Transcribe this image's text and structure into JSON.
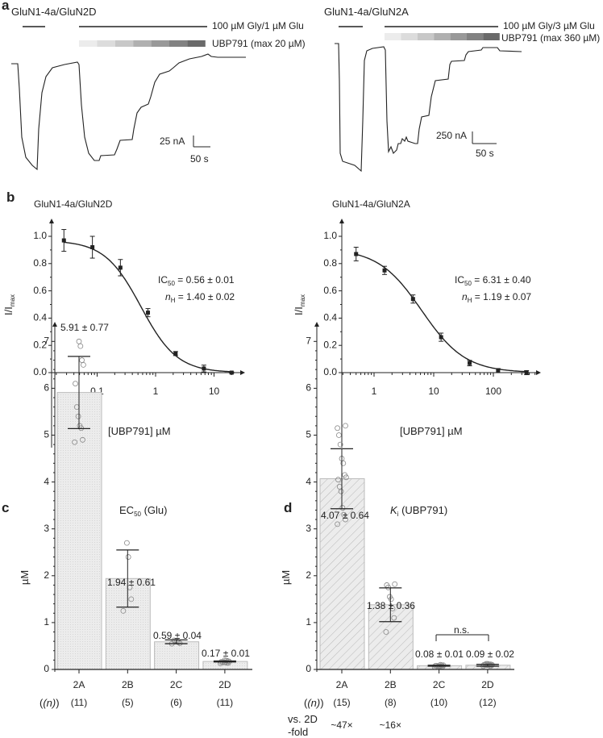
{
  "panel_labels": {
    "a": "a",
    "b": "b",
    "c": "c",
    "d": "d"
  },
  "panel_a": {
    "left": {
      "title": "GluN1-4a/GluN2D",
      "agonist_label": "100 µM Gly/1 µM Glu",
      "antagonist_label": "UBP791 (max 20 µM)",
      "scale_current": "25 nA",
      "scale_time": "50 s"
    },
    "right": {
      "title": "GluN1-4a/GluN2A",
      "agonist_label": "100 µM Gly/3 µM Glu",
      "antagonist_label": "UBP791 (max 360 µM)",
      "scale_current": "250 nA",
      "scale_time": "50 s"
    },
    "gradient_colors": [
      "#ececec",
      "#dcdcdc",
      "#c8c8c8",
      "#b0b0b0",
      "#999999",
      "#828282",
      "#6a6a6a"
    ]
  },
  "chart_data": [
    {
      "type": "scatter",
      "panel": "b-left",
      "title": "GluN1-4a/GluN2D",
      "xlabel": "[UBP791] µM",
      "ylabel": "I/I",
      "ylabel_sub": "max",
      "xscale": "log",
      "xlim": [
        0.02,
        30
      ],
      "ylim": [
        0,
        1.05
      ],
      "xticks": [
        "0.1",
        "1",
        "10"
      ],
      "xtick_values": [
        0.1,
        1,
        10
      ],
      "yticks": [
        "0.0",
        "0.2",
        "0.4",
        "0.6",
        "0.8",
        "1.0"
      ],
      "x": [
        0.027,
        0.083,
        0.25,
        0.74,
        2.2,
        6.7,
        20
      ],
      "y": [
        0.97,
        0.92,
        0.77,
        0.44,
        0.14,
        0.03,
        0.0
      ],
      "err": [
        0.08,
        0.08,
        0.06,
        0.03,
        0.015,
        0.025,
        0.005
      ],
      "fit": {
        "ic50": 0.56,
        "nH": 1.4,
        "top": 0.97
      },
      "annotation": {
        "ic_label": "IC",
        "ic_sub": "50",
        "ic_value": " = 0.56 ± 0.01",
        "nh_label": "n",
        "nh_sub": "H",
        "nh_value": " = 1.40 ± 0.02"
      }
    },
    {
      "type": "scatter",
      "panel": "b-right",
      "title": "GluN1-4a/GluN2A",
      "xlabel": "[UBP791] µM",
      "ylabel": "I/I",
      "ylabel_sub": "max",
      "xscale": "log",
      "xlim": [
        0.3,
        600
      ],
      "ylim": [
        0,
        1.05
      ],
      "xticks": [
        "1",
        "10",
        "100"
      ],
      "xtick_values": [
        1,
        10,
        100
      ],
      "yticks": [
        "0.0",
        "0.2",
        "0.4",
        "0.6",
        "0.8",
        "1.0"
      ],
      "x": [
        0.5,
        1.5,
        4.5,
        13.3,
        40,
        120,
        360
      ],
      "y": [
        0.87,
        0.75,
        0.54,
        0.26,
        0.07,
        0.015,
        0.0
      ],
      "err": [
        0.05,
        0.03,
        0.03,
        0.03,
        0.02,
        0.015,
        0.015
      ],
      "fit": {
        "ic50": 6.31,
        "nH": 1.19,
        "top": 0.91
      },
      "annotation": {
        "ic_label": "IC",
        "ic_sub": "50",
        "ic_value": " = 6.31 ± 0.40",
        "nh_label": "n",
        "nh_sub": "H",
        "nh_value": " = 1.19 ± 0.07"
      }
    },
    {
      "type": "bar",
      "panel": "c",
      "title": "EC",
      "title_sub": "50",
      "title_rest": " (Glu)",
      "ylabel": "µM",
      "ylim": [
        0,
        7
      ],
      "yticks": [
        "0",
        "1",
        "2",
        "3",
        "4",
        "5",
        "6",
        "7"
      ],
      "categories": [
        "2A",
        "2B",
        "2C",
        "2D"
      ],
      "n_label": "(n)",
      "n": [
        "(11)",
        "(5)",
        "(6)",
        "(11)"
      ],
      "values": [
        5.91,
        1.94,
        0.59,
        0.17
      ],
      "sd": [
        0.77,
        0.61,
        0.04,
        0.01
      ],
      "value_labels": [
        "5.91 ± 0.77",
        "1.94 ± 0.61",
        "0.59 ± 0.04",
        "0.17 ± 0.01"
      ],
      "points": [
        [
          4.85,
          4.9,
          5.15,
          5.2,
          5.4,
          5.6,
          6.1,
          6.5,
          6.6,
          6.9,
          7.0
        ],
        [
          1.25,
          1.5,
          1.75,
          2.4,
          2.7
        ],
        [
          0.55,
          0.56,
          0.58,
          0.6,
          0.61,
          0.62
        ],
        [
          0.13,
          0.14,
          0.14,
          0.15,
          0.15,
          0.16,
          0.16,
          0.17,
          0.18,
          0.19,
          0.2
        ]
      ],
      "bar_fill": "#ececec",
      "pattern": "dots"
    },
    {
      "type": "bar",
      "panel": "d",
      "title": "K",
      "title_sub": "i",
      "title_rest": " (UBP791)",
      "ylabel": "µM",
      "ylim": [
        0,
        7
      ],
      "yticks": [
        "0",
        "1",
        "2",
        "3",
        "4",
        "5",
        "6",
        "7"
      ],
      "categories": [
        "2A",
        "2B",
        "2C",
        "2D"
      ],
      "n_label": "(n)",
      "n": [
        "(15)",
        "(8)",
        "(10)",
        "(12)"
      ],
      "values": [
        4.07,
        1.38,
        0.08,
        0.09
      ],
      "sd": [
        0.64,
        0.36,
        0.01,
        0.02
      ],
      "value_labels": [
        "4.07 ± 0.64",
        "1.38 ± 0.36",
        "0.08 ± 0.01",
        "0.09 ± 0.02"
      ],
      "points": [
        [
          3.1,
          3.2,
          3.3,
          3.45,
          3.8,
          3.9,
          4.05,
          4.1,
          4.15,
          4.4,
          4.5,
          4.8,
          5.0,
          5.15,
          5.2
        ],
        [
          0.8,
          1.1,
          1.3,
          1.5,
          1.55,
          1.75,
          1.8,
          1.82
        ],
        [
          0.05,
          0.06,
          0.06,
          0.07,
          0.07,
          0.08,
          0.08,
          0.09,
          0.09,
          0.1
        ],
        [
          0.07,
          0.08,
          0.08,
          0.09,
          0.09,
          0.1,
          0.1,
          0.1,
          0.11,
          0.11,
          0.12,
          0.12
        ]
      ],
      "bar_fill": "#ececec",
      "pattern": "hatch",
      "significance": {
        "label": "n.s.",
        "between": [
          "2C",
          "2D"
        ]
      },
      "fold_label_1": "vs. 2D",
      "fold_label_2": "-fold",
      "fold": [
        "~47×",
        "~16×"
      ]
    }
  ]
}
